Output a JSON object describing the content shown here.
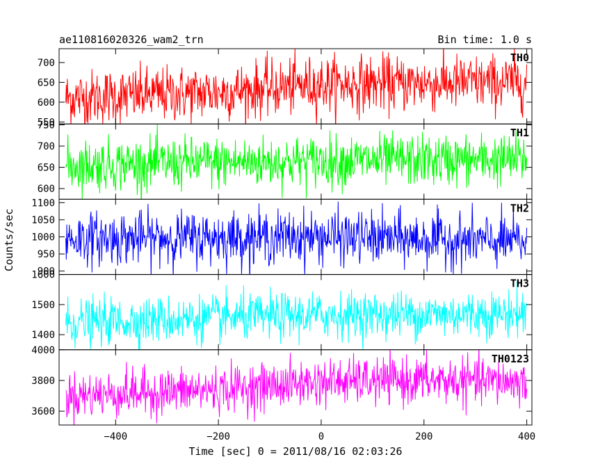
{
  "chart_data": {
    "type": "line",
    "title": "ae110816020326_wam2_trn",
    "bin_time_label": "Bin time: 1.0 s",
    "xlabel": "Time [sec] 0 = 2011/08/16 02:03:26",
    "ylabel": "Counts/sec",
    "xlim": [
      -510,
      410
    ],
    "x_ticks": [
      -400,
      -200,
      0,
      200,
      400
    ],
    "x_tick_labels": [
      "−400",
      "−200",
      "0",
      "200",
      "400"
    ],
    "x_range_data": [
      -497,
      400
    ],
    "panels": [
      {
        "name": "TH0",
        "color": "#ff0000",
        "ylim": [
          545,
          735
        ],
        "y_ticks": [
          550,
          600,
          650,
          700
        ],
        "y_tick_labels": [
          "550",
          "600",
          "650",
          "700"
        ],
        "mean_trend": [
          {
            "x": -497,
            "y": 610
          },
          {
            "x": -200,
            "y": 625
          },
          {
            "x": 0,
            "y": 645
          },
          {
            "x": 200,
            "y": 648
          },
          {
            "x": 400,
            "y": 650
          }
        ],
        "spread": 35
      },
      {
        "name": "TH1",
        "color": "#00ff00",
        "ylim": [
          575,
          752
        ],
        "y_ticks": [
          600,
          650,
          700,
          750
        ],
        "y_tick_labels": [
          "600",
          "650",
          "700",
          "750"
        ],
        "mean_trend": [
          {
            "x": -497,
            "y": 655
          },
          {
            "x": 0,
            "y": 665
          },
          {
            "x": 400,
            "y": 668
          }
        ],
        "spread": 30
      },
      {
        "name": "TH2",
        "color": "#0000ff",
        "ylim": [
          890,
          1110
        ],
        "y_ticks": [
          900,
          950,
          1000,
          1050,
          1100
        ],
        "y_tick_labels": [
          "900",
          "950",
          "1000",
          "1050",
          "1100"
        ],
        "mean_trend": [
          {
            "x": -497,
            "y": 995
          },
          {
            "x": 0,
            "y": 1000
          },
          {
            "x": 400,
            "y": 985
          }
        ],
        "spread": 38
      },
      {
        "name": "TH3",
        "color": "#00ffff",
        "ylim": [
          1350,
          1600
        ],
        "y_ticks": [
          1400,
          1500,
          1600
        ],
        "y_tick_labels": [
          "1400",
          "1500",
          "1600"
        ],
        "mean_trend": [
          {
            "x": -497,
            "y": 1440
          },
          {
            "x": 0,
            "y": 1465
          },
          {
            "x": 400,
            "y": 1470
          }
        ],
        "spread": 38
      },
      {
        "name": "TH0123",
        "color": "#ff00ff",
        "ylim": [
          3510,
          4000
        ],
        "y_ticks": [
          3600,
          3800,
          4000
        ],
        "y_tick_labels": [
          "3600",
          "3800",
          "4000"
        ],
        "mean_trend": [
          {
            "x": -497,
            "y": 3700
          },
          {
            "x": -200,
            "y": 3740
          },
          {
            "x": 0,
            "y": 3790
          },
          {
            "x": 200,
            "y": 3800
          },
          {
            "x": 400,
            "y": 3790
          }
        ],
        "spread": 75
      }
    ]
  }
}
